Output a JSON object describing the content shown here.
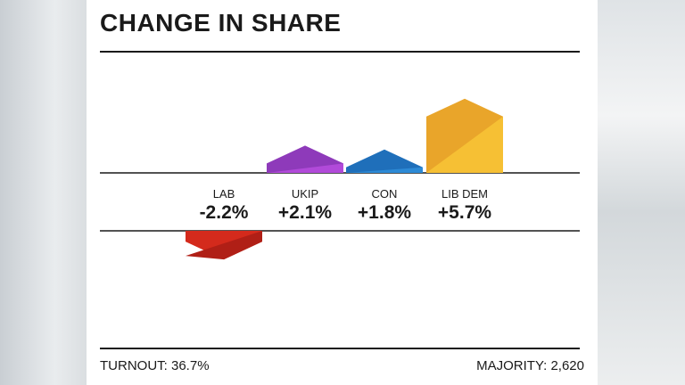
{
  "chart_data": {
    "type": "bar",
    "title": "CHANGE IN SHARE",
    "categories": [
      "LAB",
      "UKIP",
      "CON",
      "LIB DEM"
    ],
    "values": [
      -2.2,
      2.1,
      1.8,
      5.7
    ],
    "value_labels": [
      "-2.2%",
      "+2.1%",
      "+1.8%",
      "+5.7%"
    ],
    "unit": "%",
    "colors": {
      "LAB": [
        "#d42a1c",
        "#b01f16"
      ],
      "UKIP": [
        "#8e3aba",
        "#b14ad9"
      ],
      "CON": [
        "#1f6fba",
        "#2d8ad6"
      ],
      "LIB DEM": [
        "#e9a52a",
        "#f6c034"
      ]
    }
  },
  "footer": {
    "turnout": "TURNOUT: 36.7%",
    "majority": "MAJORITY: 2,620"
  }
}
